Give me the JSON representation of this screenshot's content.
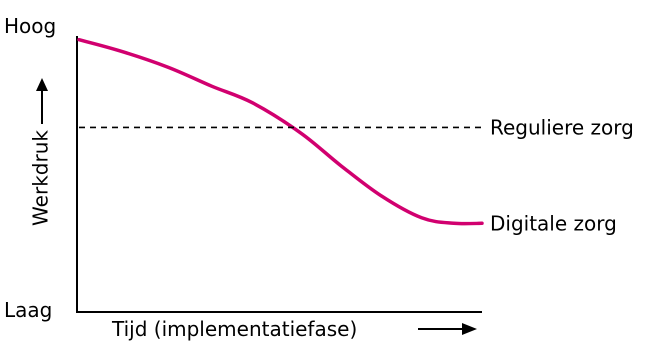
{
  "chart_data": {
    "type": "line",
    "title": "",
    "xlabel": "Tijd (implementatiefase)",
    "ylabel": "Werkdruk",
    "y_tick_labels": {
      "top": "Hoog",
      "bottom": "Laag"
    },
    "xlim": [
      0,
      100
    ],
    "ylim": [
      0,
      100
    ],
    "grid": false,
    "series": [
      {
        "name": "Digitale zorg",
        "color": "#d1006f",
        "style": "solid",
        "points": [
          [
            0,
            95
          ],
          [
            10,
            91
          ],
          [
            22,
            85
          ],
          [
            33,
            78
          ],
          [
            43,
            72
          ],
          [
            55,
            61
          ],
          [
            65,
            49
          ],
          [
            75,
            38
          ],
          [
            85,
            30
          ],
          [
            93,
            28
          ],
          [
            100,
            28
          ]
        ]
      },
      {
        "name": "Reguliere zorg",
        "color": "#000000",
        "style": "dashed",
        "points": [
          [
            0,
            63
          ],
          [
            100,
            63
          ]
        ]
      }
    ]
  }
}
